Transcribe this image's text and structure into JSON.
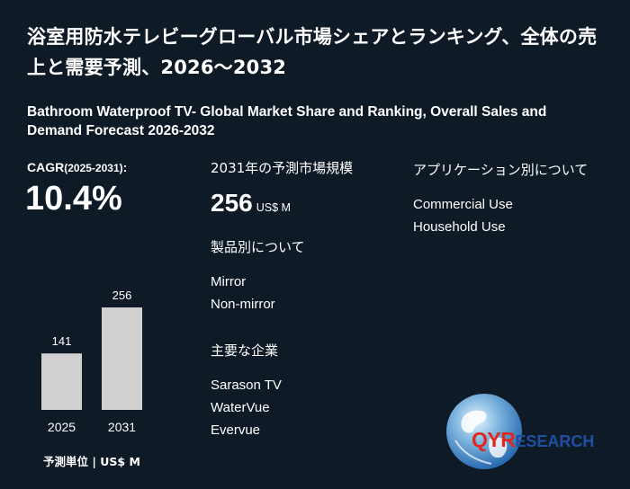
{
  "title": {
    "ja": "浴室用防水テレビーグローバル市場シェアとランキング、全体の売上と需要予測、2026～2032",
    "en": "Bathroom Waterproof TV- Global Market Share and Ranking, Overall Sales and Demand Forecast 2026-2032"
  },
  "cagr": {
    "label": "CAGR",
    "period": "(2025-2031)",
    "suffix": ":",
    "value": "10.4%"
  },
  "chart_data": {
    "type": "bar",
    "categories": [
      "2025",
      "2031"
    ],
    "values": [
      141,
      256
    ],
    "value_labels": [
      "141",
      "256"
    ],
    "bar_color": "#d0d0d0",
    "unit_label": "予測単位 | US$ M"
  },
  "market": {
    "heading": "2031年の予測市場規模",
    "value": "256",
    "unit": "US$ M"
  },
  "product": {
    "heading": "製品別について",
    "items": [
      "Mirror",
      "Non-mirror"
    ]
  },
  "companies": {
    "heading": "主要な企業",
    "items": [
      "Sarason TV",
      "WaterVue",
      "Evervue"
    ]
  },
  "application": {
    "heading": "アプリケーション別について",
    "items": [
      "Commercial Use",
      "Household Use"
    ]
  },
  "logo": {
    "qyr": "QYR",
    "research": "ESEARCH",
    "brand_red": "#e1261c",
    "brand_blue": "#1e4fa0"
  },
  "colors": {
    "background": "#0f1a27",
    "text": "#ffffff"
  }
}
